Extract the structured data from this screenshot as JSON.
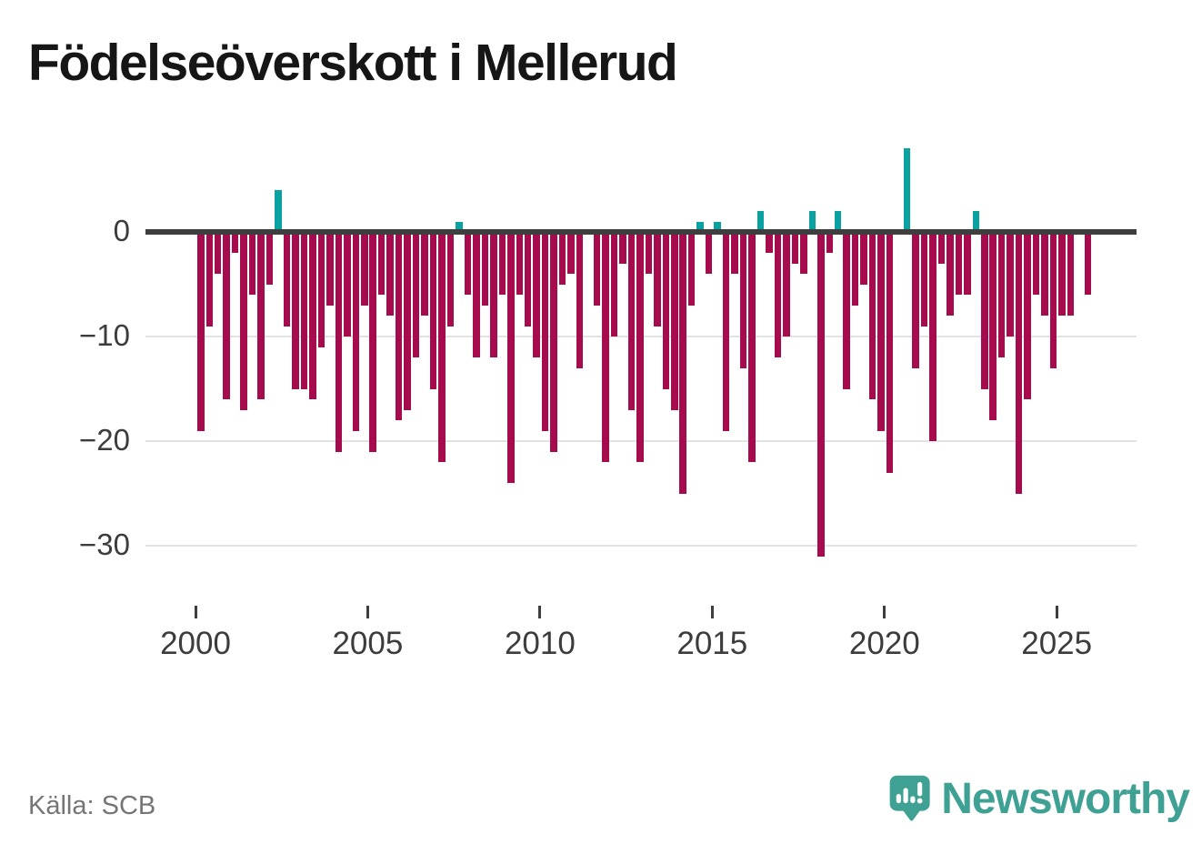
{
  "title": "Födelseöverskott i Mellerud",
  "source": "Källa: SCB",
  "logo": {
    "brand": "Newsworthy",
    "icon": "newsworthy-bubble-chart-icon"
  },
  "chart_data": {
    "type": "bar",
    "title": "Födelseöverskott i Mellerud",
    "x_unit": "quarter",
    "legend": "none",
    "grid": "horizontal",
    "positive_color": "#0aa2a0",
    "negative_color": "#a60b4d",
    "ylim": [
      -33,
      9
    ],
    "yticks": [
      {
        "value": 0,
        "label": "0"
      },
      {
        "value": -10,
        "label": "−10"
      },
      {
        "value": -20,
        "label": "−20"
      },
      {
        "value": -30,
        "label": "−30"
      }
    ],
    "xtick_years": [
      "2000",
      "2005",
      "2010",
      "2015",
      "2020",
      "2025"
    ],
    "quarters": [
      "2000Q1",
      "2000Q2",
      "2000Q3",
      "2000Q4",
      "2001Q1",
      "2001Q2",
      "2001Q3",
      "2001Q4",
      "2002Q1",
      "2002Q2",
      "2002Q3",
      "2002Q4",
      "2003Q1",
      "2003Q2",
      "2003Q3",
      "2003Q4",
      "2004Q1",
      "2004Q2",
      "2004Q3",
      "2004Q4",
      "2005Q1",
      "2005Q2",
      "2005Q3",
      "2005Q4",
      "2006Q1",
      "2006Q2",
      "2006Q3",
      "2006Q4",
      "2007Q1",
      "2007Q2",
      "2007Q3",
      "2007Q4",
      "2008Q1",
      "2008Q2",
      "2008Q3",
      "2008Q4",
      "2009Q1",
      "2009Q2",
      "2009Q3",
      "2009Q4",
      "2010Q1",
      "2010Q2",
      "2010Q3",
      "2010Q4",
      "2011Q1",
      "2011Q2",
      "2011Q3",
      "2011Q4",
      "2012Q1",
      "2012Q2",
      "2012Q3",
      "2012Q4",
      "2013Q1",
      "2013Q2",
      "2013Q3",
      "2013Q4",
      "2014Q1",
      "2014Q2",
      "2014Q3",
      "2014Q4",
      "2015Q1",
      "2015Q2",
      "2015Q3",
      "2015Q4",
      "2016Q1",
      "2016Q2",
      "2016Q3",
      "2016Q4",
      "2017Q1",
      "2017Q2",
      "2017Q3",
      "2017Q4",
      "2018Q1",
      "2018Q2",
      "2018Q3",
      "2018Q4",
      "2019Q1",
      "2019Q2",
      "2019Q3",
      "2019Q4",
      "2020Q1",
      "2020Q2",
      "2020Q3",
      "2020Q4",
      "2021Q1",
      "2021Q2",
      "2021Q3",
      "2021Q4",
      "2022Q1",
      "2022Q2",
      "2022Q3",
      "2022Q4",
      "2023Q1",
      "2023Q2",
      "2023Q3",
      "2023Q4",
      "2024Q1",
      "2024Q2",
      "2024Q3",
      "2024Q4",
      "2025Q1",
      "2025Q2",
      "2025Q3",
      "2025Q4"
    ],
    "values": [
      -19,
      -9,
      -4,
      -16,
      -2,
      -17,
      -6,
      -16,
      -5,
      4,
      -9,
      -15,
      -15,
      -16,
      -11,
      -7,
      -21,
      -10,
      -19,
      -7,
      -21,
      -6,
      -8,
      -18,
      -17,
      -12,
      -8,
      -15,
      -22,
      -9,
      1,
      -6,
      -12,
      -7,
      -12,
      -6,
      -24,
      -6,
      -9,
      -12,
      -19,
      -21,
      -5,
      -4,
      -13,
      0,
      -7,
      -22,
      -10,
      -3,
      -17,
      -22,
      -4,
      -9,
      -15,
      -17,
      -25,
      -7,
      1,
      -4,
      1,
      -19,
      -4,
      -13,
      -22,
      2,
      -2,
      -12,
      -10,
      -3,
      -4,
      2,
      -31,
      -2,
      2,
      -15,
      -7,
      -5,
      -16,
      -19,
      -23,
      0,
      8,
      -13,
      -9,
      -20,
      -3,
      -8,
      -6,
      -6,
      2,
      -15,
      -18,
      -12,
      -10,
      -25,
      -16,
      -6,
      -8,
      -13,
      -8,
      -8,
      0,
      -6
    ]
  }
}
